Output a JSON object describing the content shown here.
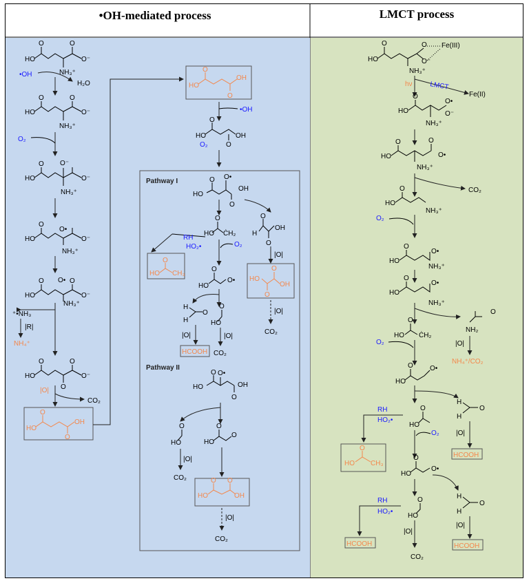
{
  "headers": {
    "left": "•OH-mediated process",
    "right": "LMCT process"
  },
  "colors": {
    "left_bg": "#c6d8ef",
    "right_bg": "#d7e3c0",
    "product": "#f4874b",
    "reagent": "#1a1aff"
  },
  "atoms": {
    "HO": "HO",
    "OH": "OH",
    "O": "O",
    "O_minus": "O⁻",
    "O_rad": "O•",
    "NH3": "NH₃⁺",
    "H": "H",
    "CH2": "ĊH₂",
    "CH3": "CH₃",
    "NH2": "NH₂",
    "NH3_rad": "⁺•NH₃"
  },
  "reagents": {
    "oh_radical": "•OH",
    "water": "H₂O",
    "oxygen": "O₂",
    "co2": "CO₂",
    "rh": "RH",
    "ho2": "HO₂•",
    "oxidant": "|O|",
    "reductant": "|R|",
    "ammonium": "NH₄⁺",
    "hv": "hν",
    "lmct": "LMCT",
    "fe2": "Fe(II)",
    "fe3": "Fe(III)",
    "ammonium_co2": "NH₄⁺/CO₂",
    "formic_acid": "HCOOH"
  },
  "pathways": {
    "one": "Pathway I",
    "two": "Pathway II"
  }
}
